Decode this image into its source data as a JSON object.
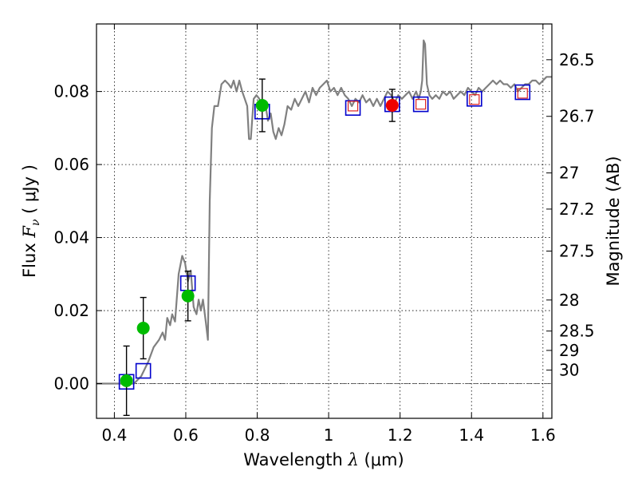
{
  "chart_data": {
    "type": "scatter",
    "xlabel": {
      "prefix": "Wavelength  ",
      "symbol": "λ",
      "unit": " (μm)"
    },
    "ylabel": {
      "prefix": "Flux  ",
      "symbol": "F",
      "sub": "ν",
      "unit": "  ( μJy )"
    },
    "y2label": "Magnitude (AB)",
    "xlim": [
      0.35,
      1.625
    ],
    "ylim": [
      -0.0095,
      0.0985
    ],
    "x_ticks": [
      {
        "value": 0.4,
        "label": "0.4"
      },
      {
        "value": 0.6,
        "label": "0.6"
      },
      {
        "value": 0.8,
        "label": "0.8"
      },
      {
        "value": 1.0,
        "label": "1"
      },
      {
        "value": 1.2,
        "label": "1.2"
      },
      {
        "value": 1.4,
        "label": "1.4"
      },
      {
        "value": 1.6,
        "label": "1.6"
      }
    ],
    "y_ticks": [
      {
        "value": 0.0,
        "label": "0.00"
      },
      {
        "value": 0.02,
        "label": "0.02"
      },
      {
        "value": 0.04,
        "label": "0.04"
      },
      {
        "value": 0.06,
        "label": "0.06"
      },
      {
        "value": 0.08,
        "label": "0.08"
      }
    ],
    "mag_ticks": [
      {
        "flux": 0.0887,
        "label": "26.5"
      },
      {
        "flux": 0.0732,
        "label": "26.7"
      },
      {
        "flux": 0.0577,
        "label": "27"
      },
      {
        "flux": 0.0478,
        "label": "27.2"
      },
      {
        "flux": 0.0363,
        "label": "27.5"
      },
      {
        "flux": 0.0229,
        "label": "28"
      },
      {
        "flux": 0.0144,
        "label": "28.5"
      },
      {
        "flux": 0.0091,
        "label": "29"
      },
      {
        "flux": 0.0037,
        "label": "30"
      }
    ],
    "grid": true,
    "zero_line": true,
    "colors": {
      "template": "#808080",
      "model_box": "#0000cc",
      "obs_green": "#00bb00",
      "obs_red": "#ee0000",
      "box_red": "#dd2222",
      "errorbar": "#000000"
    },
    "template_spectrum": [
      [
        0.35,
        0.0
      ],
      [
        0.455,
        0.0
      ],
      [
        0.475,
        0.002
      ],
      [
        0.495,
        0.006
      ],
      [
        0.51,
        0.01
      ],
      [
        0.525,
        0.012
      ],
      [
        0.535,
        0.014
      ],
      [
        0.542,
        0.012
      ],
      [
        0.548,
        0.018
      ],
      [
        0.556,
        0.016
      ],
      [
        0.562,
        0.019
      ],
      [
        0.57,
        0.017
      ],
      [
        0.58,
        0.03
      ],
      [
        0.59,
        0.035
      ],
      [
        0.598,
        0.033
      ],
      [
        0.606,
        0.028
      ],
      [
        0.614,
        0.031
      ],
      [
        0.622,
        0.021
      ],
      [
        0.63,
        0.019
      ],
      [
        0.636,
        0.023
      ],
      [
        0.642,
        0.02
      ],
      [
        0.648,
        0.023
      ],
      [
        0.656,
        0.017
      ],
      [
        0.662,
        0.012
      ],
      [
        0.667,
        0.05
      ],
      [
        0.673,
        0.07
      ],
      [
        0.68,
        0.076
      ],
      [
        0.69,
        0.076
      ],
      [
        0.7,
        0.082
      ],
      [
        0.71,
        0.083
      ],
      [
        0.72,
        0.082
      ],
      [
        0.727,
        0.081
      ],
      [
        0.734,
        0.083
      ],
      [
        0.742,
        0.08
      ],
      [
        0.75,
        0.083
      ],
      [
        0.758,
        0.08
      ],
      [
        0.765,
        0.078
      ],
      [
        0.772,
        0.076
      ],
      [
        0.777,
        0.067
      ],
      [
        0.782,
        0.067
      ],
      [
        0.79,
        0.078
      ],
      [
        0.798,
        0.079
      ],
      [
        0.806,
        0.078
      ],
      [
        0.815,
        0.075
      ],
      [
        0.822,
        0.077
      ],
      [
        0.83,
        0.072
      ],
      [
        0.838,
        0.074
      ],
      [
        0.845,
        0.069
      ],
      [
        0.852,
        0.067
      ],
      [
        0.86,
        0.07
      ],
      [
        0.868,
        0.068
      ],
      [
        0.876,
        0.071
      ],
      [
        0.885,
        0.076
      ],
      [
        0.895,
        0.075
      ],
      [
        0.905,
        0.078
      ],
      [
        0.915,
        0.076
      ],
      [
        0.925,
        0.078
      ],
      [
        0.935,
        0.08
      ],
      [
        0.945,
        0.077
      ],
      [
        0.955,
        0.081
      ],
      [
        0.965,
        0.079
      ],
      [
        0.975,
        0.081
      ],
      [
        0.985,
        0.082
      ],
      [
        0.995,
        0.083
      ],
      [
        1.005,
        0.08
      ],
      [
        1.015,
        0.081
      ],
      [
        1.025,
        0.079
      ],
      [
        1.035,
        0.081
      ],
      [
        1.045,
        0.079
      ],
      [
        1.055,
        0.078
      ],
      [
        1.065,
        0.076
      ],
      [
        1.075,
        0.078
      ],
      [
        1.085,
        0.077
      ],
      [
        1.095,
        0.079
      ],
      [
        1.105,
        0.077
      ],
      [
        1.115,
        0.078
      ],
      [
        1.125,
        0.076
      ],
      [
        1.135,
        0.078
      ],
      [
        1.145,
        0.076
      ],
      [
        1.155,
        0.078
      ],
      [
        1.165,
        0.08
      ],
      [
        1.175,
        0.079
      ],
      [
        1.185,
        0.077
      ],
      [
        1.195,
        0.079
      ],
      [
        1.205,
        0.078
      ],
      [
        1.215,
        0.079
      ],
      [
        1.225,
        0.08
      ],
      [
        1.235,
        0.078
      ],
      [
        1.245,
        0.08
      ],
      [
        1.252,
        0.078
      ],
      [
        1.258,
        0.08
      ],
      [
        1.262,
        0.083
      ],
      [
        1.266,
        0.094
      ],
      [
        1.27,
        0.093
      ],
      [
        1.275,
        0.082
      ],
      [
        1.282,
        0.079
      ],
      [
        1.29,
        0.078
      ],
      [
        1.3,
        0.079
      ],
      [
        1.31,
        0.078
      ],
      [
        1.32,
        0.08
      ],
      [
        1.33,
        0.079
      ],
      [
        1.34,
        0.08
      ],
      [
        1.35,
        0.078
      ],
      [
        1.36,
        0.079
      ],
      [
        1.37,
        0.08
      ],
      [
        1.38,
        0.079
      ],
      [
        1.39,
        0.081
      ],
      [
        1.4,
        0.08
      ],
      [
        1.41,
        0.079
      ],
      [
        1.42,
        0.081
      ],
      [
        1.43,
        0.08
      ],
      [
        1.44,
        0.081
      ],
      [
        1.45,
        0.082
      ],
      [
        1.46,
        0.083
      ],
      [
        1.47,
        0.082
      ],
      [
        1.48,
        0.083
      ],
      [
        1.49,
        0.082
      ],
      [
        1.5,
        0.082
      ],
      [
        1.51,
        0.081
      ],
      [
        1.52,
        0.082
      ],
      [
        1.53,
        0.08
      ],
      [
        1.54,
        0.081
      ],
      [
        1.55,
        0.082
      ],
      [
        1.56,
        0.082
      ],
      [
        1.57,
        0.083
      ],
      [
        1.58,
        0.083
      ],
      [
        1.59,
        0.082
      ],
      [
        1.6,
        0.083
      ],
      [
        1.61,
        0.084
      ],
      [
        1.625,
        0.084
      ]
    ],
    "model_boxes": [
      {
        "x": 0.434,
        "y": 0.0005,
        "color": "blue"
      },
      {
        "x": 0.481,
        "y": 0.0035,
        "color": "blue"
      },
      {
        "x": 0.606,
        "y": 0.0275,
        "color": "blue"
      },
      {
        "x": 0.814,
        "y": 0.0745,
        "color": "blue"
      },
      {
        "x": 1.068,
        "y": 0.0755,
        "color": "blue"
      },
      {
        "x": 1.178,
        "y": 0.0765,
        "color": "blue"
      },
      {
        "x": 1.258,
        "y": 0.0765,
        "color": "blue"
      },
      {
        "x": 1.408,
        "y": 0.078,
        "color": "blue"
      },
      {
        "x": 1.543,
        "y": 0.0798,
        "color": "blue"
      },
      {
        "x": 1.068,
        "y": 0.076,
        "color": "red",
        "small": true
      },
      {
        "x": 1.258,
        "y": 0.0765,
        "color": "red",
        "small": true
      },
      {
        "x": 1.408,
        "y": 0.0778,
        "color": "red",
        "small": true
      },
      {
        "x": 1.543,
        "y": 0.0795,
        "color": "red",
        "small": true
      }
    ],
    "observations": [
      {
        "x": 0.434,
        "y": 0.0008,
        "yerr": 0.0095,
        "color": "green"
      },
      {
        "x": 0.481,
        "y": 0.0152,
        "yerr": 0.0084,
        "color": "green"
      },
      {
        "x": 0.606,
        "y": 0.024,
        "yerr": 0.0068,
        "color": "green"
      },
      {
        "x": 0.814,
        "y": 0.0762,
        "yerr": 0.0072,
        "color": "green"
      },
      {
        "x": 1.178,
        "y": 0.0762,
        "yerr": 0.0044,
        "color": "red"
      }
    ]
  }
}
